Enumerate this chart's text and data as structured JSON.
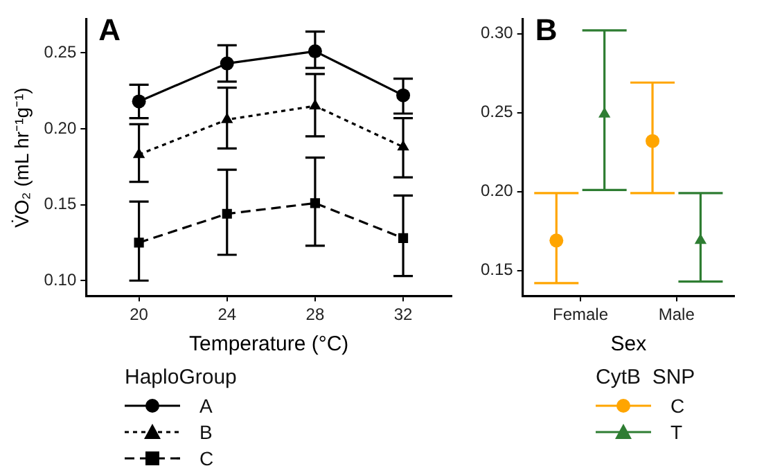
{
  "chart_data": [
    {
      "type": "line",
      "title": "A",
      "xlabel": "Temperature (°C)",
      "ylabel": "V̇O₂ (mL hr⁻¹g⁻¹)",
      "legend_title": "HaploGroup",
      "legend": "bottom",
      "grid": false,
      "x": [
        20,
        24,
        28,
        32
      ],
      "xlim": [
        17.6,
        34.2
      ],
      "xticks": [
        20,
        24,
        28,
        32
      ],
      "ylim": [
        0.09,
        0.272
      ],
      "yticks": [
        {
          "value": 0.1,
          "label": "0.10"
        },
        {
          "value": 0.15,
          "label": "0.15"
        },
        {
          "value": 0.2,
          "label": "0.20"
        },
        {
          "value": 0.25,
          "label": "0.25"
        }
      ],
      "series": [
        {
          "name": "A",
          "color": "#000000",
          "marker": "circle",
          "line_style": "solid",
          "values": [
            0.218,
            0.243,
            0.251,
            0.222
          ],
          "errors": [
            [
              0.207,
              0.229
            ],
            [
              0.231,
              0.255
            ],
            [
              0.24,
              0.264
            ],
            [
              0.21,
              0.233
            ]
          ]
        },
        {
          "name": "B",
          "color": "#000000",
          "marker": "triangle",
          "line_style": "dotted",
          "values": [
            0.183,
            0.206,
            0.215,
            0.188
          ],
          "errors": [
            [
              0.165,
              0.203
            ],
            [
              0.187,
              0.227
            ],
            [
              0.195,
              0.236
            ],
            [
              0.168,
              0.207
            ]
          ]
        },
        {
          "name": "C",
          "color": "#000000",
          "marker": "square",
          "line_style": "dashed",
          "values": [
            0.125,
            0.144,
            0.151,
            0.128
          ],
          "errors": [
            [
              0.1,
              0.152
            ],
            [
              0.117,
              0.173
            ],
            [
              0.123,
              0.181
            ],
            [
              0.103,
              0.156
            ]
          ]
        }
      ]
    },
    {
      "type": "scatter",
      "title": "B",
      "xlabel": "Sex",
      "legend_title": "CytB  SNP",
      "legend": "bottom",
      "grid": false,
      "categories": [
        "Female",
        "Male"
      ],
      "ylim": [
        0.134,
        0.309
      ],
      "yticks": [
        {
          "value": 0.15,
          "label": "0.15"
        },
        {
          "value": 0.2,
          "label": "0.20"
        },
        {
          "value": 0.25,
          "label": "0.25"
        },
        {
          "value": 0.3,
          "label": "0.30"
        }
      ],
      "series": [
        {
          "name": "C",
          "color": "#ffa500",
          "marker": "circle",
          "values": [
            0.169,
            0.232
          ],
          "errors": [
            [
              0.142,
              0.199
            ],
            [
              0.199,
              0.269
            ]
          ]
        },
        {
          "name": "T",
          "color": "#2e7d32",
          "marker": "triangle",
          "values": [
            0.249,
            0.169
          ],
          "errors": [
            [
              0.201,
              0.302
            ],
            [
              0.143,
              0.199
            ]
          ]
        }
      ]
    }
  ]
}
